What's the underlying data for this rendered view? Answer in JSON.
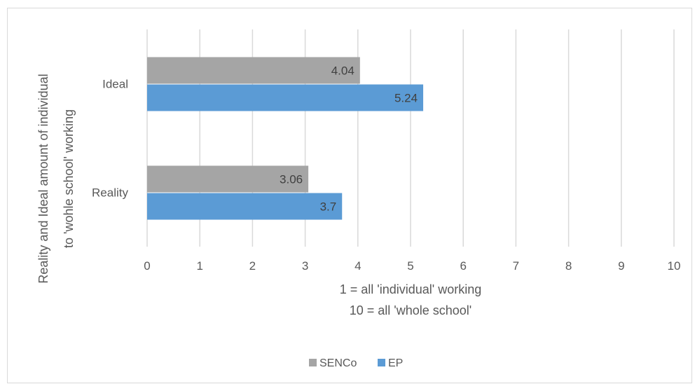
{
  "chart_data": {
    "type": "bar",
    "orientation": "horizontal",
    "categories": [
      "Ideal",
      "Reality"
    ],
    "series": [
      {
        "name": "SENCo",
        "color": "#a5a5a5",
        "values": [
          4.04,
          3.06
        ]
      },
      {
        "name": "EP",
        "color": "#5b9bd5",
        "values": [
          5.24,
          3.7
        ]
      }
    ],
    "data_labels": {
      "SENCo": [
        "4.04",
        "3.06"
      ],
      "EP": [
        "5.24",
        "3.7"
      ]
    },
    "xlim": [
      0,
      10
    ],
    "x_ticks": [
      "0",
      "1",
      "2",
      "3",
      "4",
      "5",
      "6",
      "7",
      "8",
      "9",
      "10"
    ],
    "xlabel": [
      "1 = all 'individual' working",
      "10 = all 'whole school'"
    ],
    "ylabel": [
      "Reality and Ideal amount of individual",
      "to 'wohle school' working"
    ],
    "grid": "vertical",
    "legend_position": "bottom",
    "gridline_color": "#d9d9d9"
  }
}
